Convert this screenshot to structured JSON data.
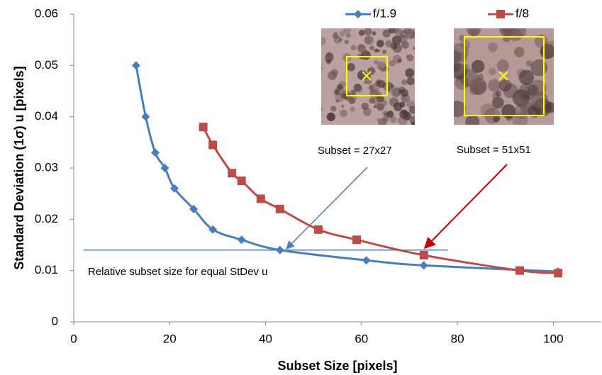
{
  "chart_data": {
    "type": "line",
    "x_label": "Subset Size [pixels]",
    "y_label": "Standard Deviation (1σ) u [pixels]",
    "xlim": [
      0,
      110
    ],
    "xticks": [
      0,
      20,
      40,
      60,
      80,
      100
    ],
    "ylim": [
      0,
      0.06
    ],
    "yticks": [
      0,
      0.01,
      0.02,
      0.03,
      0.04,
      0.05,
      0.06
    ],
    "series": [
      {
        "name": "f/1.9",
        "color": "#4a7ebb",
        "marker": "diamond",
        "x": [
          13,
          15,
          17,
          19,
          21,
          25,
          29,
          35,
          43,
          61,
          73,
          101
        ],
        "values": [
          0.05,
          0.04,
          0.033,
          0.03,
          0.026,
          0.022,
          0.018,
          0.016,
          0.014,
          0.012,
          0.011,
          0.0098
        ]
      },
      {
        "name": "f/8",
        "color": "#be4b48",
        "marker": "square",
        "x": [
          27,
          29,
          33,
          35,
          39,
          43,
          51,
          59,
          73,
          93,
          101
        ],
        "values": [
          0.038,
          0.0345,
          0.029,
          0.0275,
          0.024,
          0.022,
          0.018,
          0.016,
          0.013,
          0.01,
          0.0095
        ]
      }
    ],
    "reference_line": {
      "text": "Relative subset size for equal StDev u",
      "y": 0.014,
      "x": [
        2,
        78
      ]
    },
    "annotations": [
      {
        "text": "Subset = 27x27",
        "color": "#4a7ebb"
      },
      {
        "text": "Subset = 51x51",
        "color": "#c00000"
      }
    ]
  }
}
